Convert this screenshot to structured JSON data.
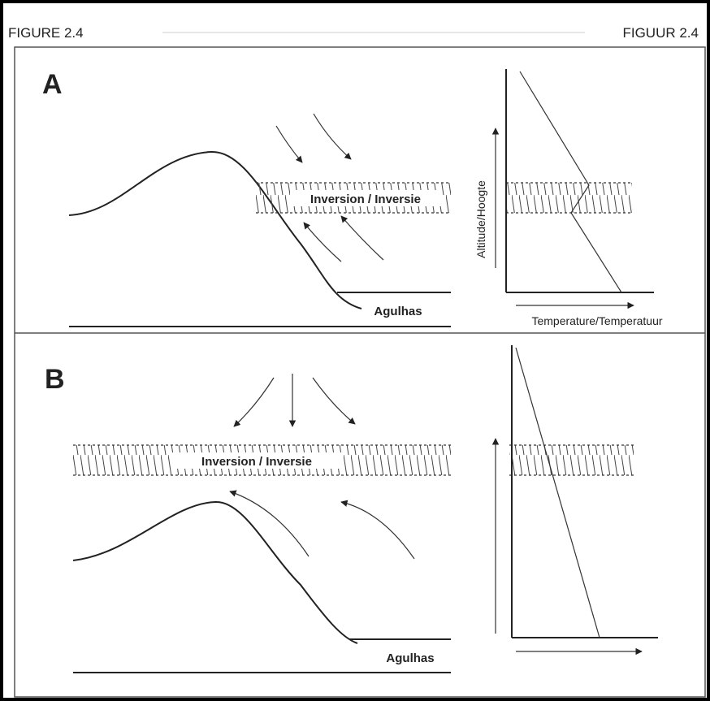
{
  "header": {
    "left": "FIGURE 2.4",
    "right": "FIGUUR 2.4"
  },
  "panels": [
    {
      "label": "A",
      "inversion": "Inversion / Inversie",
      "current": "Agulhas",
      "y_axis": "Altitude/Hoogte",
      "x_axis": "Temperature/Temperatuur"
    },
    {
      "label": "B",
      "inversion": "Inversion / Inversie",
      "current": "Agulhas"
    }
  ]
}
